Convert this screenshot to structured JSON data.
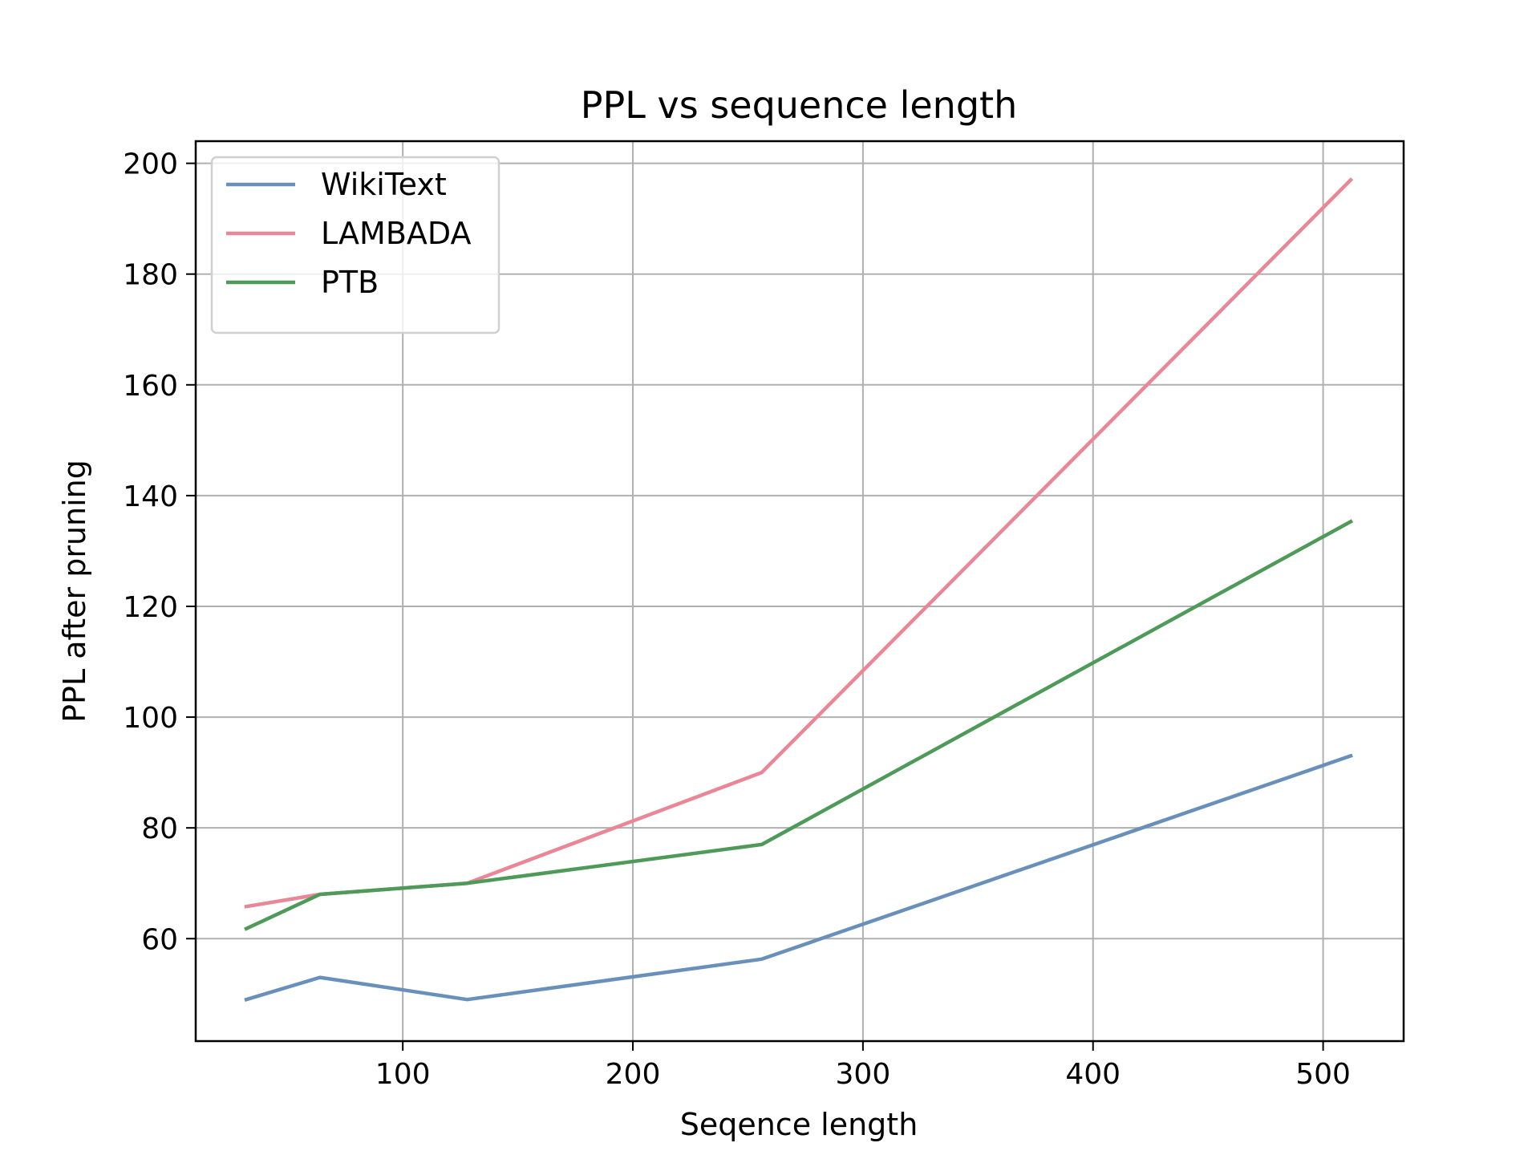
{
  "chart_data": {
    "type": "line",
    "title": "PPL vs sequence length",
    "xlabel": "Seqence length",
    "ylabel": "PPL after pruning",
    "xlim": [
      10,
      535
    ],
    "ylim": [
      41.5,
      204
    ],
    "xticks": [
      100,
      200,
      300,
      400,
      500
    ],
    "yticks": [
      60,
      80,
      100,
      120,
      140,
      160,
      180,
      200
    ],
    "grid": true,
    "legend_position": "top-left",
    "x": [
      32,
      64,
      128,
      256,
      512
    ],
    "series": [
      {
        "name": "WikiText",
        "color": "#6890bb",
        "values": [
          49,
          53,
          49,
          56.3,
          93
        ]
      },
      {
        "name": "LAMBADA",
        "color": "#ea8796",
        "values": [
          65.8,
          68,
          70,
          90,
          197
        ]
      },
      {
        "name": "PTB",
        "color": "#4e9a58",
        "values": [
          61.8,
          68,
          70,
          77,
          135.3
        ]
      }
    ]
  }
}
